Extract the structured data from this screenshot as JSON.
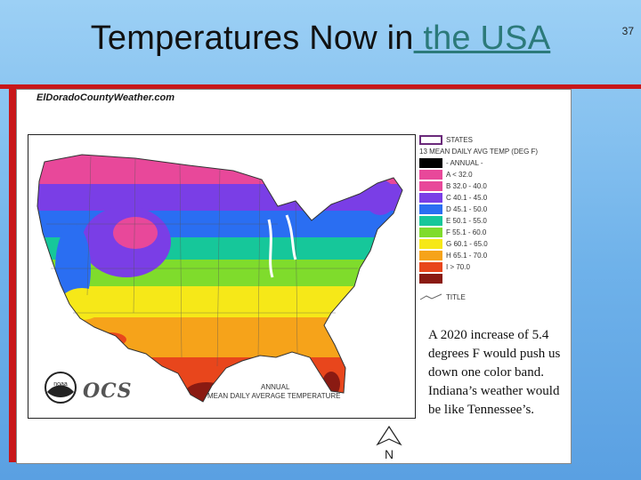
{
  "slide": {
    "title_prefix": "Temperatures Now in",
    "title_link": " the USA",
    "page_number": "37"
  },
  "map": {
    "site_label": "ElDoradoCountyWeather.com",
    "caption_line1": "ANNUAL",
    "caption_line2": "MEAN DAILY AVERAGE TEMPERATURE",
    "logo_text": "OCS",
    "noaa_label": "noaa",
    "north_label": "N",
    "legend": {
      "states_label": "STATES",
      "heading": "13 MEAN DAILY AVG TEMP (DEG F)",
      "annual_label": "- ANNUAL -",
      "classes": [
        {
          "label": "A < 32.0",
          "color": "#000000"
        },
        {
          "label": "B 32.0 - 40.0",
          "color": "#e8489a"
        },
        {
          "label": "C 40.1 - 45.0",
          "color": "#7a3ee6"
        },
        {
          "label": "D 45.1 - 50.0",
          "color": "#2a6ef2"
        },
        {
          "label": "E 50.1 - 55.0",
          "color": "#16c79a"
        },
        {
          "label": "F 55.1 - 60.0",
          "color": "#7fdc2c"
        },
        {
          "label": "G 60.1 - 65.0",
          "color": "#f6e818"
        },
        {
          "label": "H 65.1 - 70.0",
          "color": "#f6a31a"
        },
        {
          "label": "I > 70.0",
          "color": "#e8461c"
        }
      ],
      "extra_color": "#8a1a12",
      "title_line_label": "TITLE"
    }
  },
  "note": {
    "text": "A 2020 increase of 5.4 degrees F would push us  down one color band. Indiana’s weather would be like Tennessee’s."
  },
  "colors": {
    "background": "#7ab8ec",
    "accent_bar": "#c8171a",
    "link": "#2c7a7a"
  }
}
